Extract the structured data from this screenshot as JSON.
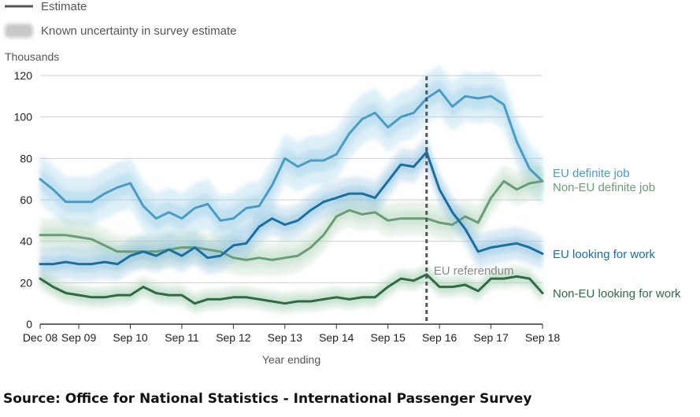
{
  "legend": {
    "estimate_label": "Estimate",
    "uncertainty_label": "Known uncertainty in survey estimate"
  },
  "source": "Source: Office for National Statistics - International Passenger Survey",
  "chart_data": {
    "type": "line",
    "ylabel": "Thousands",
    "xlabel": "Year ending",
    "ylim": [
      0,
      120
    ],
    "y_ticks": [
      0,
      20,
      40,
      60,
      80,
      100,
      120
    ],
    "x_tick_labels": [
      "Dec 08",
      "Sep 09",
      "Sep 10",
      "Sep 11",
      "Sep 12",
      "Sep 13",
      "Sep 14",
      "Sep 15",
      "Sep 16",
      "Sep 17",
      "Sep 18"
    ],
    "x_tick_index": [
      0,
      3,
      7,
      11,
      15,
      19,
      23,
      27,
      31,
      35,
      39
    ],
    "x_periods": [
      "Dec 08",
      "Mar 09",
      "Jun 09",
      "Sep 09",
      "Dec 09",
      "Mar 10",
      "Jun 10",
      "Sep 10",
      "Dec 10",
      "Mar 11",
      "Jun 11",
      "Sep 11",
      "Dec 11",
      "Mar 12",
      "Jun 12",
      "Sep 12",
      "Dec 12",
      "Mar 13",
      "Jun 13",
      "Sep 13",
      "Dec 13",
      "Mar 14",
      "Jun 14",
      "Sep 14",
      "Dec 14",
      "Mar 15",
      "Jun 15",
      "Sep 15",
      "Dec 15",
      "Mar 16",
      "Jun 16",
      "Sep 16",
      "Dec 16",
      "Mar 17",
      "Jun 17",
      "Sep 17",
      "Dec 17",
      "Mar 18",
      "Jun 18",
      "Sep 18"
    ],
    "grid": true,
    "annotation": {
      "label": "EU referendum",
      "at_period": "Jun 16"
    },
    "series": [
      {
        "name": "EU definite job",
        "color": "#4a9cc4",
        "band_color": "#9fd0e8",
        "values": [
          70,
          65,
          59,
          59,
          59,
          63,
          66,
          68,
          57,
          51,
          54,
          51,
          56,
          58,
          50,
          51,
          56,
          57,
          67,
          80,
          76,
          79,
          79,
          82,
          92,
          99,
          102,
          95,
          100,
          102,
          109,
          113,
          105,
          110,
          109,
          110,
          106,
          88,
          75,
          69
        ]
      },
      {
        "name": "Non-EU definite job",
        "color": "#6a9c78",
        "band_color": "#b9dac0",
        "values": [
          43,
          43,
          43,
          42,
          41,
          38,
          35,
          35,
          35,
          35,
          36,
          37,
          37,
          36,
          35,
          32,
          31,
          32,
          31,
          32,
          33,
          37,
          43,
          52,
          55,
          53,
          54,
          50,
          51,
          51,
          51,
          49,
          48,
          52,
          49,
          61,
          69,
          65,
          68,
          69
        ]
      },
      {
        "name": "EU looking for work",
        "color": "#1a6fa0",
        "band_color": "#8fc3e0",
        "values": [
          29,
          29,
          30,
          29,
          29,
          30,
          29,
          33,
          35,
          33,
          36,
          33,
          37,
          32,
          33,
          38,
          39,
          47,
          51,
          48,
          50,
          55,
          59,
          61,
          63,
          63,
          61,
          69,
          77,
          76,
          83,
          65,
          54,
          46,
          35,
          37,
          38,
          39,
          37,
          34
        ]
      },
      {
        "name": "Non-EU looking for work",
        "color": "#2e6b45",
        "band_color": "#a9d0b4",
        "values": [
          22,
          18,
          15,
          14,
          13,
          13,
          14,
          14,
          18,
          15,
          14,
          14,
          10,
          12,
          12,
          13,
          13,
          12,
          11,
          10,
          11,
          11,
          12,
          13,
          12,
          13,
          13,
          18,
          22,
          21,
          24,
          18,
          18,
          19,
          16,
          22,
          22,
          23,
          22,
          15
        ]
      }
    ]
  }
}
